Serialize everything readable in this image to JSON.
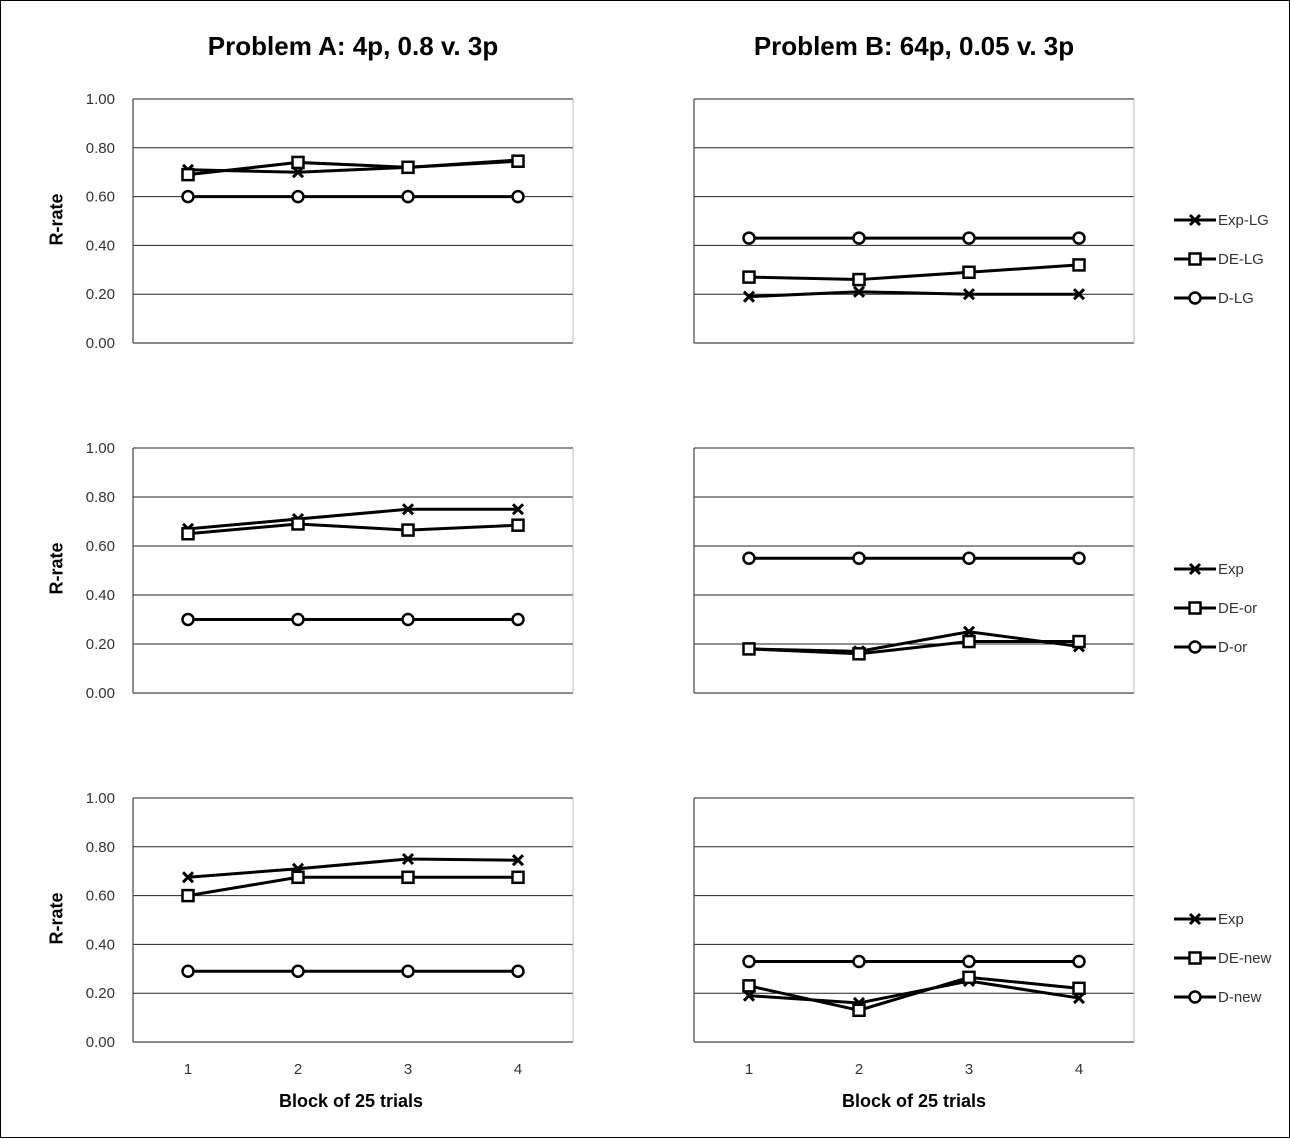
{
  "figure": {
    "titles": [
      "Problem A: 4p, 0.8 v. 3p",
      "Problem B: 64p, 0.05 v. 3p"
    ],
    "xlabel": "Block of 25 trials",
    "ylabel": "R-rate"
  },
  "chart_data": [
    {
      "type": "line",
      "title": "Problem A: 4p, 0.8 v. 3p",
      "ylabel": "R-rate",
      "xlabel": "",
      "x": [
        1,
        2,
        3,
        4
      ],
      "ylim": [
        0,
        1
      ],
      "yticks": [
        "0.00",
        "0.20",
        "0.40",
        "0.60",
        "0.80",
        "1.00"
      ],
      "xticks": [],
      "grid": true,
      "series": [
        {
          "name": "Exp-LG",
          "marker": "x",
          "values": [
            0.71,
            0.7,
            0.72,
            0.75
          ]
        },
        {
          "name": "DE-LG",
          "marker": "square",
          "values": [
            0.69,
            0.74,
            0.72,
            0.745
          ]
        },
        {
          "name": "D-LG",
          "marker": "circle",
          "values": [
            0.6,
            0.6,
            0.6,
            0.6
          ]
        }
      ]
    },
    {
      "type": "line",
      "title": "Problem B: 64p, 0.05 v. 3p",
      "ylabel": "",
      "xlabel": "",
      "x": [
        1,
        2,
        3,
        4
      ],
      "ylim": [
        0,
        1
      ],
      "yticks": [],
      "xticks": [],
      "grid": true,
      "legend": [
        "Exp-LG",
        "DE-LG",
        "D-LG"
      ],
      "series": [
        {
          "name": "Exp-LG",
          "marker": "x",
          "values": [
            0.19,
            0.21,
            0.2,
            0.2
          ]
        },
        {
          "name": "DE-LG",
          "marker": "square",
          "values": [
            0.27,
            0.26,
            0.29,
            0.32
          ]
        },
        {
          "name": "D-LG",
          "marker": "circle",
          "values": [
            0.43,
            0.43,
            0.43,
            0.43
          ]
        }
      ]
    },
    {
      "type": "line",
      "title": "",
      "ylabel": "R-rate",
      "xlabel": "",
      "x": [
        1,
        2,
        3,
        4
      ],
      "ylim": [
        0,
        1
      ],
      "yticks": [
        "0.00",
        "0.20",
        "0.40",
        "0.60",
        "0.80",
        "1.00"
      ],
      "xticks": [],
      "grid": true,
      "series": [
        {
          "name": "Exp",
          "marker": "x",
          "values": [
            0.67,
            0.71,
            0.75,
            0.75
          ]
        },
        {
          "name": "DE-or",
          "marker": "square",
          "values": [
            0.65,
            0.69,
            0.665,
            0.685
          ]
        },
        {
          "name": "D-or",
          "marker": "circle",
          "values": [
            0.3,
            0.3,
            0.3,
            0.3
          ]
        }
      ]
    },
    {
      "type": "line",
      "title": "",
      "ylabel": "",
      "xlabel": "",
      "x": [
        1,
        2,
        3,
        4
      ],
      "ylim": [
        0,
        1
      ],
      "yticks": [],
      "xticks": [],
      "grid": true,
      "legend": [
        "Exp",
        "DE-or",
        "D-or"
      ],
      "series": [
        {
          "name": "Exp",
          "marker": "x",
          "values": [
            0.18,
            0.17,
            0.25,
            0.19
          ]
        },
        {
          "name": "DE-or",
          "marker": "square",
          "values": [
            0.18,
            0.16,
            0.21,
            0.21
          ]
        },
        {
          "name": "D-or",
          "marker": "circle",
          "values": [
            0.55,
            0.55,
            0.55,
            0.55
          ]
        }
      ]
    },
    {
      "type": "line",
      "title": "",
      "ylabel": "R-rate",
      "xlabel": "Block of 25 trials",
      "x": [
        1,
        2,
        3,
        4
      ],
      "ylim": [
        0,
        1
      ],
      "yticks": [
        "0.00",
        "0.20",
        "0.40",
        "0.60",
        "0.80",
        "1.00"
      ],
      "xticks": [
        "1",
        "2",
        "3",
        "4"
      ],
      "grid": true,
      "series": [
        {
          "name": "Exp",
          "marker": "x",
          "values": [
            0.675,
            0.71,
            0.75,
            0.745
          ]
        },
        {
          "name": "DE-new",
          "marker": "square",
          "values": [
            0.6,
            0.675,
            0.675,
            0.675
          ]
        },
        {
          "name": "D-new",
          "marker": "circle",
          "values": [
            0.29,
            0.29,
            0.29,
            0.29
          ]
        }
      ]
    },
    {
      "type": "line",
      "title": "",
      "ylabel": "",
      "xlabel": "Block of 25 trials",
      "x": [
        1,
        2,
        3,
        4
      ],
      "ylim": [
        0,
        1
      ],
      "yticks": [],
      "xticks": [
        "1",
        "2",
        "3",
        "4"
      ],
      "grid": true,
      "legend": [
        "Exp",
        "DE-new",
        "D-new"
      ],
      "series": [
        {
          "name": "Exp",
          "marker": "x",
          "values": [
            0.19,
            0.16,
            0.25,
            0.18
          ]
        },
        {
          "name": "DE-new",
          "marker": "square",
          "values": [
            0.23,
            0.13,
            0.265,
            0.22
          ]
        },
        {
          "name": "D-new",
          "marker": "circle",
          "values": [
            0.33,
            0.33,
            0.33,
            0.33
          ]
        }
      ]
    }
  ]
}
